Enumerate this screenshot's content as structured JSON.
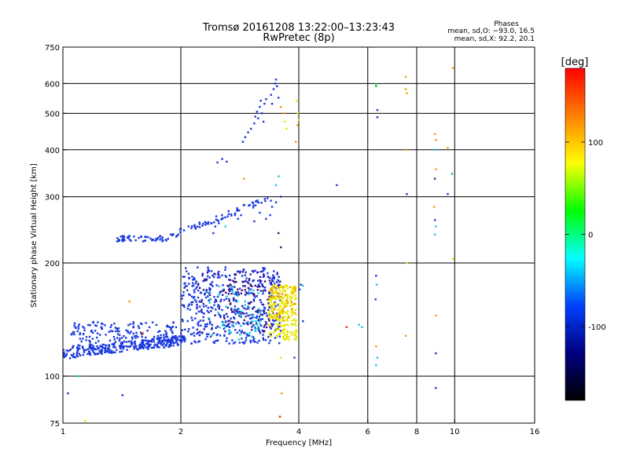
{
  "chart_data": {
    "type": "scatter",
    "title": "Tromsø 20161208 13:22:00–13:23:43",
    "subtitle": "RwPretec (8p)",
    "xlabel": "Frequency [MHz]",
    "ylabel": "Stationary phase Virtual Height [km]",
    "x_scale": "log",
    "y_scale": "log",
    "xlim": [
      1,
      16
    ],
    "ylim": [
      75,
      750
    ],
    "x_ticks": [
      1,
      2,
      4,
      6,
      8,
      10,
      16
    ],
    "x_tick_labels": [
      "1",
      "2",
      "4",
      "6",
      "8",
      "10",
      "16"
    ],
    "y_ticks": [
      75,
      100,
      200,
      300,
      400,
      500,
      600,
      750
    ],
    "y_tick_labels": [
      "75",
      "100",
      "200",
      "300",
      "400",
      "500",
      "600",
      "750"
    ],
    "grid": true,
    "phase_stats": {
      "header": "Phases",
      "line_o": "mean, sd,O: −93.0, 16.5",
      "line_x": "mean, sd,X:  92.2, 20.1"
    },
    "colorbar": {
      "label": "[deg]",
      "range": [
        -180,
        180
      ],
      "ticks": [
        100,
        0,
        -100
      ],
      "tick_labels": [
        "100",
        "0",
        "-100"
      ],
      "colors": [
        "#ff0000",
        "#ff8000",
        "#ffff00",
        "#00ff00",
        "#00ffff",
        "#0040ff",
        "#000080",
        "#000000"
      ]
    },
    "point_colors": {
      "blue": "#1838e0",
      "indigo": "#2a1aa8",
      "purple": "#4a1070",
      "cyan": "#10c8e8",
      "yellow": "#e8e800",
      "orange": "#f0a000",
      "green": "#20c040",
      "red": "#e03000"
    },
    "clusters": [
      {
        "name": "E-layer trace",
        "color": "blue",
        "x": [
          1.0,
          2.05
        ],
        "y": [
          110,
          130
        ],
        "n": 260
      },
      {
        "name": "lower trace scatter",
        "color": "blue",
        "x": [
          1.05,
          1.95
        ],
        "y": [
          118,
          140
        ],
        "n": 200
      },
      {
        "name": "spread F cluster",
        "color": "blue",
        "x": [
          2.0,
          3.6
        ],
        "y": [
          122,
          195
        ],
        "n": 420
      },
      {
        "name": "spread F violet",
        "color": "indigo",
        "x": [
          2.2,
          3.6
        ],
        "y": [
          130,
          190
        ],
        "n": 140
      },
      {
        "name": "spread F dark",
        "color": "purple",
        "x": [
          2.6,
          3.4
        ],
        "y": [
          135,
          180
        ],
        "n": 50
      },
      {
        "name": "cyan scatter",
        "color": "cyan",
        "x": [
          2.3,
          3.2
        ],
        "y": [
          125,
          175
        ],
        "n": 60
      },
      {
        "name": "X-mode cluster",
        "color": "yellow",
        "x": [
          3.35,
          3.95
        ],
        "y": [
          125,
          175
        ],
        "n": 230
      },
      {
        "name": "X-mode orange",
        "color": "orange",
        "x": [
          3.4,
          3.95
        ],
        "y": [
          140,
          175
        ],
        "n": 40
      },
      {
        "name": "F1 plateau",
        "color": "blue",
        "x": [
          1.35,
          1.85
        ],
        "y": [
          228,
          236
        ],
        "n": 50
      },
      {
        "name": "F-rise trace",
        "color": "blue",
        "x": [
          1.85,
          3.4
        ],
        "y": [
          230,
          300
        ],
        "n": 70
      }
    ],
    "points": [
      {
        "x": 1.48,
        "y": 158,
        "c": "orange"
      },
      {
        "x": 1.6,
        "y": 130,
        "c": "red"
      },
      {
        "x": 1.42,
        "y": 89,
        "c": "blue"
      },
      {
        "x": 1.03,
        "y": 90,
        "c": "blue"
      },
      {
        "x": 1.1,
        "y": 100,
        "c": "cyan"
      },
      {
        "x": 1.14,
        "y": 76,
        "c": "yellow"
      },
      {
        "x": 2.48,
        "y": 370,
        "c": "blue"
      },
      {
        "x": 2.55,
        "y": 378,
        "c": "blue"
      },
      {
        "x": 2.62,
        "y": 372,
        "c": "blue"
      },
      {
        "x": 2.88,
        "y": 420,
        "c": "blue"
      },
      {
        "x": 2.92,
        "y": 432,
        "c": "blue"
      },
      {
        "x": 2.97,
        "y": 445,
        "c": "blue"
      },
      {
        "x": 3.02,
        "y": 455,
        "c": "blue"
      },
      {
        "x": 3.08,
        "y": 470,
        "c": "blue"
      },
      {
        "x": 3.1,
        "y": 490,
        "c": "blue"
      },
      {
        "x": 3.13,
        "y": 505,
        "c": "blue"
      },
      {
        "x": 3.15,
        "y": 485,
        "c": "blue"
      },
      {
        "x": 3.18,
        "y": 520,
        "c": "blue"
      },
      {
        "x": 3.2,
        "y": 540,
        "c": "blue"
      },
      {
        "x": 3.22,
        "y": 500,
        "c": "blue"
      },
      {
        "x": 3.25,
        "y": 475,
        "c": "blue"
      },
      {
        "x": 3.27,
        "y": 530,
        "c": "blue"
      },
      {
        "x": 3.3,
        "y": 545,
        "c": "blue"
      },
      {
        "x": 3.4,
        "y": 560,
        "c": "blue"
      },
      {
        "x": 3.45,
        "y": 580,
        "c": "blue"
      },
      {
        "x": 3.48,
        "y": 600,
        "c": "blue"
      },
      {
        "x": 3.5,
        "y": 615,
        "c": "blue"
      },
      {
        "x": 3.52,
        "y": 590,
        "c": "blue"
      },
      {
        "x": 3.42,
        "y": 530,
        "c": "blue"
      },
      {
        "x": 3.55,
        "y": 550,
        "c": "blue"
      },
      {
        "x": 3.6,
        "y": 520,
        "c": "orange"
      },
      {
        "x": 3.65,
        "y": 500,
        "c": "orange"
      },
      {
        "x": 3.68,
        "y": 475,
        "c": "yellow"
      },
      {
        "x": 3.72,
        "y": 455,
        "c": "yellow"
      },
      {
        "x": 3.95,
        "y": 540,
        "c": "yellow"
      },
      {
        "x": 3.98,
        "y": 500,
        "c": "yellow"
      },
      {
        "x": 4.0,
        "y": 480,
        "c": "yellow"
      },
      {
        "x": 3.97,
        "y": 465,
        "c": "orange"
      },
      {
        "x": 3.93,
        "y": 420,
        "c": "orange"
      },
      {
        "x": 2.9,
        "y": 335,
        "c": "orange"
      },
      {
        "x": 3.5,
        "y": 322,
        "c": "cyan"
      },
      {
        "x": 3.55,
        "y": 340,
        "c": "cyan"
      },
      {
        "x": 3.6,
        "y": 300,
        "c": "blue"
      },
      {
        "x": 3.5,
        "y": 290,
        "c": "blue"
      },
      {
        "x": 3.42,
        "y": 282,
        "c": "blue"
      },
      {
        "x": 3.38,
        "y": 268,
        "c": "blue"
      },
      {
        "x": 3.3,
        "y": 262,
        "c": "blue"
      },
      {
        "x": 3.18,
        "y": 272,
        "c": "blue"
      },
      {
        "x": 3.08,
        "y": 258,
        "c": "blue"
      },
      {
        "x": 3.0,
        "y": 285,
        "c": "blue"
      },
      {
        "x": 2.85,
        "y": 268,
        "c": "blue"
      },
      {
        "x": 2.8,
        "y": 262,
        "c": "blue"
      },
      {
        "x": 2.75,
        "y": 268,
        "c": "blue"
      },
      {
        "x": 2.65,
        "y": 270,
        "c": "blue"
      },
      {
        "x": 2.55,
        "y": 262,
        "c": "blue"
      },
      {
        "x": 2.5,
        "y": 255,
        "c": "blue"
      },
      {
        "x": 2.45,
        "y": 250,
        "c": "blue"
      },
      {
        "x": 2.42,
        "y": 240,
        "c": "blue"
      },
      {
        "x": 2.6,
        "y": 250,
        "c": "cyan"
      },
      {
        "x": 3.55,
        "y": 240,
        "c": "purple"
      },
      {
        "x": 3.6,
        "y": 220,
        "c": "purple"
      },
      {
        "x": 3.6,
        "y": 112,
        "c": "yellow"
      },
      {
        "x": 3.62,
        "y": 90,
        "c": "orange"
      },
      {
        "x": 3.58,
        "y": 78,
        "c": "red"
      },
      {
        "x": 4.1,
        "y": 140,
        "c": "blue"
      },
      {
        "x": 4.02,
        "y": 170,
        "c": "blue"
      },
      {
        "x": 4.05,
        "y": 175,
        "c": "blue"
      },
      {
        "x": 4.1,
        "y": 174,
        "c": "cyan"
      },
      {
        "x": 3.9,
        "y": 112,
        "c": "blue"
      },
      {
        "x": 5.0,
        "y": 322,
        "c": "blue"
      },
      {
        "x": 5.3,
        "y": 135,
        "c": "red"
      },
      {
        "x": 5.7,
        "y": 137,
        "c": "cyan"
      },
      {
        "x": 5.8,
        "y": 135,
        "c": "cyan"
      },
      {
        "x": 6.3,
        "y": 590,
        "c": "green"
      },
      {
        "x": 6.3,
        "y": 598,
        "c": "green"
      },
      {
        "x": 6.35,
        "y": 510,
        "c": "blue"
      },
      {
        "x": 6.35,
        "y": 488,
        "c": "blue"
      },
      {
        "x": 6.3,
        "y": 185,
        "c": "blue"
      },
      {
        "x": 6.32,
        "y": 175,
        "c": "cyan"
      },
      {
        "x": 6.28,
        "y": 160,
        "c": "blue"
      },
      {
        "x": 6.3,
        "y": 120,
        "c": "orange"
      },
      {
        "x": 6.35,
        "y": 112,
        "c": "cyan"
      },
      {
        "x": 6.3,
        "y": 107,
        "c": "cyan"
      },
      {
        "x": 7.5,
        "y": 625,
        "c": "orange"
      },
      {
        "x": 7.5,
        "y": 580,
        "c": "orange"
      },
      {
        "x": 7.55,
        "y": 565,
        "c": "orange"
      },
      {
        "x": 7.5,
        "y": 400,
        "c": "orange"
      },
      {
        "x": 7.55,
        "y": 305,
        "c": "blue"
      },
      {
        "x": 7.55,
        "y": 200,
        "c": "yellow"
      },
      {
        "x": 7.5,
        "y": 128,
        "c": "orange"
      },
      {
        "x": 8.9,
        "y": 440,
        "c": "orange"
      },
      {
        "x": 8.95,
        "y": 425,
        "c": "orange"
      },
      {
        "x": 8.9,
        "y": 400,
        "c": "cyan"
      },
      {
        "x": 8.95,
        "y": 355,
        "c": "orange"
      },
      {
        "x": 8.9,
        "y": 335,
        "c": "purple"
      },
      {
        "x": 8.85,
        "y": 282,
        "c": "orange"
      },
      {
        "x": 8.9,
        "y": 260,
        "c": "blue"
      },
      {
        "x": 8.95,
        "y": 250,
        "c": "cyan"
      },
      {
        "x": 8.9,
        "y": 238,
        "c": "cyan"
      },
      {
        "x": 8.95,
        "y": 145,
        "c": "orange"
      },
      {
        "x": 8.95,
        "y": 115,
        "c": "blue"
      },
      {
        "x": 8.95,
        "y": 93,
        "c": "blue"
      },
      {
        "x": 9.6,
        "y": 405,
        "c": "orange"
      },
      {
        "x": 9.6,
        "y": 305,
        "c": "blue"
      },
      {
        "x": 9.9,
        "y": 660,
        "c": "orange"
      },
      {
        "x": 9.85,
        "y": 345,
        "c": "green"
      },
      {
        "x": 9.9,
        "y": 205,
        "c": "yellow"
      }
    ]
  }
}
